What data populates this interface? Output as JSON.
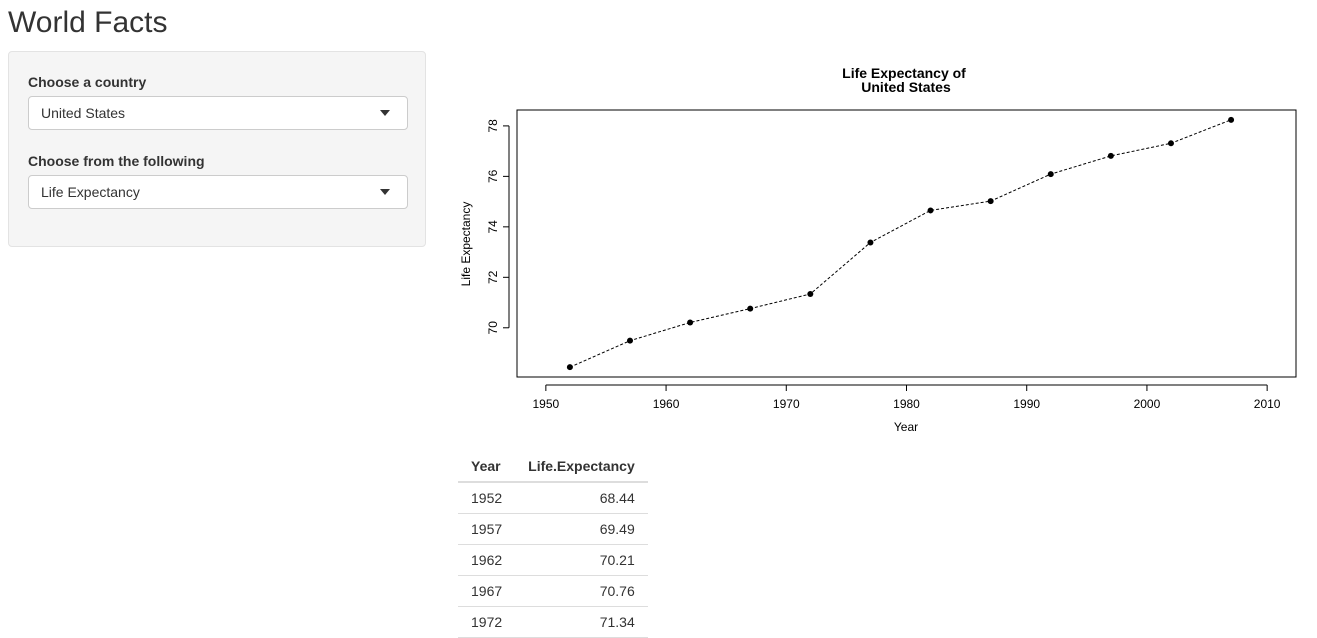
{
  "app": {
    "title": "World Facts"
  },
  "sidebar": {
    "country_label": "Choose a country",
    "country_value": "United States",
    "metric_label": "Choose from the following",
    "metric_value": "Life Expectancy"
  },
  "chart_data": {
    "type": "line",
    "title": "Life Expectancy of",
    "subtitle": "United States",
    "xlabel": "Year",
    "ylabel": "Life Expectancy",
    "x": [
      1952,
      1957,
      1962,
      1967,
      1972,
      1977,
      1982,
      1987,
      1992,
      1997,
      2002,
      2007
    ],
    "series": [
      {
        "values": [
          68.44,
          69.49,
          70.21,
          70.76,
          71.34,
          73.38,
          74.65,
          75.02,
          76.09,
          76.81,
          77.31,
          78.24
        ]
      }
    ],
    "x_ticks": [
      1950,
      1960,
      1970,
      1980,
      1990,
      2000,
      2010
    ],
    "y_ticks": [
      70,
      72,
      74,
      76,
      78
    ],
    "xlim": [
      1947.6,
      2012.4
    ],
    "ylim": [
      68.05,
      78.63
    ],
    "line_style": "dashed",
    "marker": "filled-circle",
    "grid": false
  },
  "table": {
    "headers": [
      "Year",
      "Life.Expectancy"
    ],
    "rows": [
      [
        "1952",
        "68.44"
      ],
      [
        "1957",
        "69.49"
      ],
      [
        "1962",
        "70.21"
      ],
      [
        "1967",
        "70.76"
      ],
      [
        "1972",
        "71.34"
      ]
    ]
  }
}
